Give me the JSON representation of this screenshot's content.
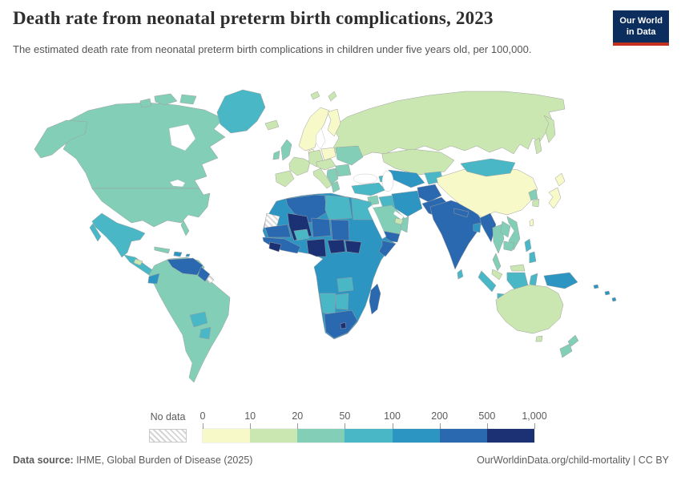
{
  "header": {
    "title": "Death rate from neonatal preterm birth complications, 2023",
    "subtitle": "The estimated death rate from neonatal preterm birth complications in children under five years old, per 100,000.",
    "logo": {
      "line1": "Our World",
      "line2": "in Data",
      "bg_color": "#0c2e5e",
      "accent_color": "#c4301f"
    }
  },
  "legend": {
    "no_data_label": "No data",
    "tick_labels": [
      "0",
      "10",
      "20",
      "50",
      "100",
      "200",
      "500",
      "1,000"
    ]
  },
  "footer": {
    "source_label": "Data source:",
    "source_text": " IHME, Global Burden of Disease (2025)",
    "right_link": "OurWorldinData.org/child-mortality",
    "right_license": " | CC BY"
  },
  "chart_data": {
    "type": "choropleth",
    "title": "Death rate from neonatal preterm birth complications, 2023",
    "metric": "Estimated death rate from neonatal preterm birth complications in children under five years old, per 100,000",
    "year": 2023,
    "unit": "deaths per 100,000",
    "legend_bins": [
      {
        "label": "0-10",
        "color": "#f8f9c9"
      },
      {
        "label": "10-20",
        "color": "#cbe7b1"
      },
      {
        "label": "20-50",
        "color": "#83ceb7"
      },
      {
        "label": "50-100",
        "color": "#49b7c6"
      },
      {
        "label": "100-200",
        "color": "#2c95c2"
      },
      {
        "label": "200-500",
        "color": "#2a69af"
      },
      {
        "label": "500-1000",
        "color": "#1c3173"
      }
    ],
    "no_data": {
      "label": "No data",
      "style": "hatched"
    },
    "regions": {
      "canada": "20-50",
      "united-states": "20-50",
      "greenland": "50-100",
      "mexico": "50-100",
      "central-america": "50-100",
      "honduras": "10-20",
      "cuba": "20-50",
      "hispaniola": "100-200",
      "puerto-rico": "100-200",
      "south-america": "20-50",
      "venezuela": "200-500",
      "guyana-suriname": "200-500",
      "french-guiana": "no-data",
      "ecuador": "100-200",
      "bolivia": "50-100",
      "paraguay": "50-100",
      "iceland": "10-20",
      "norway-sweden": "0-10",
      "finland": "0-10",
      "denmark": "0-10",
      "united-kingdom": "20-50",
      "ireland": "20-50",
      "france": "10-20",
      "iberia": "10-20",
      "germany": "10-20",
      "poland-baltics": "0-10",
      "central-europe": "10-20",
      "italy": "10-20",
      "balkans": "20-50",
      "greece": "20-50",
      "romania-bulgaria": "20-50",
      "ukraine-belarus": "20-50",
      "russia": "10-20",
      "kazakhstan": "10-20",
      "uzbekistan-turkmenistan": "100-200",
      "kyrgyzstan-tajikistan": "50-100",
      "caucasus": "50-100",
      "turkey": "50-100",
      "syria-levant": "20-50",
      "iraq": "50-100",
      "iran": "100-200",
      "afghanistan": "200-500",
      "pakistan": "200-500",
      "india": "200-500",
      "nepal": "200-500",
      "bangladesh": "100-200",
      "sri-lanka": "50-100",
      "china": "0-10",
      "mongolia": "50-100",
      "north-korea": "20-50",
      "south-korea": "10-20",
      "japan": "0-10",
      "taiwan": "0-10",
      "myanmar": "200-500",
      "thailand": "20-50",
      "laos": "20-50",
      "vietnam": "20-50",
      "cambodia": "20-50",
      "malaysia": "10-20",
      "indonesia": "50-100",
      "philippines": "50-100",
      "papua-new-guinea": "100-200",
      "pacific-islands": "100-200",
      "saudi-arabia": "20-50",
      "yemen": "200-500",
      "oman": "20-50",
      "uae-qatar": "10-20",
      "africa-east-central": "100-200",
      "algeria": "200-500",
      "libya": "50-100",
      "egypt": "50-100",
      "western-sahara": "no-data",
      "mauritania": "200-500",
      "mali": "500-1000",
      "niger": "200-500",
      "chad": "200-500",
      "west-africa": "200-500",
      "guinea": "500-1000",
      "burkina-faso": "50-100",
      "nigeria": "500-1000",
      "central-african-republic": "500-1000",
      "south-sudan": "500-1000",
      "somalia": "200-500",
      "zambia": "50-100",
      "namibia": "50-100",
      "botswana": "50-100",
      "south-africa": "200-500",
      "lesotho": "500-1000",
      "madagascar": "200-500",
      "australia": "10-20",
      "new-zealand": "20-50"
    }
  }
}
